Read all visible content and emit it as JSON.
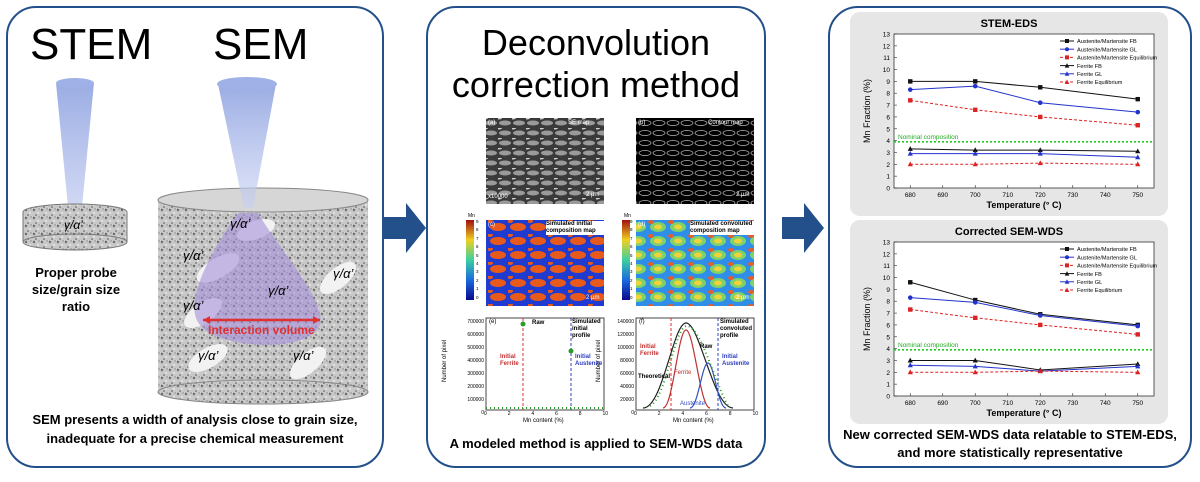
{
  "colors": {
    "frame": "#23508a",
    "arrow": "#23508a",
    "beam": "#8fa3e0",
    "interaction": "#a78fd8",
    "red_line": "#e03030"
  },
  "left": {
    "title_stem": "STEM",
    "title_sem": "SEM",
    "phase_label": "γ/α’",
    "probe_text": "Proper probe size/grain size ratio",
    "interaction_label": "Interaction volume",
    "caption": "SEM presents a width of analysis close to grain size, inadequate for a precise chemical measurement"
  },
  "middle": {
    "title": "Deconvolution correction method",
    "img_a_tag": "(a)",
    "img_a_label": "SE map",
    "img_a_scale": "2 µm",
    "img_a_mag": "x10000",
    "img_b_tag": "(b)",
    "img_b_label": "Contour map",
    "img_b_scale": "2 µm",
    "img_c_tag": "(c)",
    "img_c_label": "Simulated initial composition map",
    "img_c_scale": "2 µm",
    "img_d_tag": "(d)",
    "img_d_label": "Simulated convoluted composition map",
    "img_d_scale": "2 µm",
    "cbar_unit": "Mn",
    "cbar_ticks": [
      "9",
      "8",
      "7",
      "6",
      "5",
      "4",
      "3",
      "2",
      "1",
      "0"
    ],
    "hist_e": {
      "tag": "(e)",
      "ylabel": "Number of pixel",
      "xlabel": "Mn content (%)",
      "yticks": [
        "700000",
        "600000",
        "500000",
        "400000",
        "300000",
        "200000",
        "100000",
        "0"
      ],
      "xticks": [
        "0",
        "2",
        "4",
        "6",
        "8",
        "10"
      ],
      "raw": "Raw",
      "sim": "Simulated initial profile",
      "ferrite": "Initial Ferrite",
      "austenite": "Initial Austenite"
    },
    "hist_f": {
      "tag": "(f)",
      "ylabel": "Number of pixel",
      "xlabel": "Mn content (%)",
      "yticks": [
        "140000",
        "120000",
        "100000",
        "80000",
        "60000",
        "40000",
        "20000",
        "0"
      ],
      "xticks": [
        "0",
        "2",
        "4",
        "6",
        "8",
        "10"
      ],
      "raw": "Raw",
      "sim": "Simulated convoluted profile",
      "ferrite_init": "Initial Ferrite",
      "austenite_init": "Initial Austenite",
      "theoretical": "Theoretical",
      "ferrite": "Ferrite",
      "austenite": "Austenite"
    },
    "caption": "A modeled method is applied to SEM-WDS data"
  },
  "right": {
    "caption": "New corrected SEM-WDS data relatable to STEM-EDS, and more statistically representative",
    "nominal": "Nominal composition"
  },
  "chart_data": [
    {
      "type": "line",
      "title": "STEM-EDS",
      "xlabel": "Temperature (° C)",
      "ylabel": "Mn Fraction (%)",
      "xlim": [
        675,
        755
      ],
      "ylim": [
        0,
        13
      ],
      "xticks": [
        680,
        690,
        700,
        710,
        720,
        730,
        740,
        750
      ],
      "yticks": [
        0,
        1,
        2,
        3,
        4,
        5,
        6,
        7,
        8,
        9,
        10,
        11,
        12,
        13
      ],
      "nominal": 3.9,
      "legend": "top-right",
      "series": [
        {
          "name": "Austenite/Martensite FB",
          "color": "#111111",
          "dash": false,
          "marker": "square",
          "x": [
            680,
            700,
            720,
            750
          ],
          "y": [
            9.0,
            9.0,
            8.5,
            7.5
          ]
        },
        {
          "name": "Austenite/Martensite GL",
          "color": "#2233cc",
          "dash": false,
          "marker": "circle",
          "x": [
            680,
            700,
            720,
            750
          ],
          "y": [
            8.3,
            8.6,
            7.2,
            6.4
          ]
        },
        {
          "name": "Austenite/Martensite Equilibrium",
          "color": "#dd2222",
          "dash": true,
          "marker": "square",
          "x": [
            680,
            700,
            720,
            750
          ],
          "y": [
            7.4,
            6.6,
            6.0,
            5.3
          ]
        },
        {
          "name": "Ferrite FB",
          "color": "#111111",
          "dash": false,
          "marker": "triangle",
          "x": [
            680,
            700,
            720,
            750
          ],
          "y": [
            3.3,
            3.2,
            3.2,
            3.1
          ]
        },
        {
          "name": "Ferrite GL",
          "color": "#2233cc",
          "dash": false,
          "marker": "triangle",
          "x": [
            680,
            700,
            720,
            750
          ],
          "y": [
            2.9,
            2.9,
            2.9,
            2.6
          ]
        },
        {
          "name": "Ferrite Equilibrium",
          "color": "#dd2222",
          "dash": true,
          "marker": "triangle",
          "x": [
            680,
            700,
            720,
            750
          ],
          "y": [
            2.0,
            2.0,
            2.1,
            2.0
          ]
        }
      ]
    },
    {
      "type": "line",
      "title": "Corrected SEM-WDS",
      "xlabel": "Temperature (° C)",
      "ylabel": "Mn Fraction (%)",
      "xlim": [
        675,
        755
      ],
      "ylim": [
        0,
        13
      ],
      "xticks": [
        680,
        690,
        700,
        710,
        720,
        730,
        740,
        750
      ],
      "yticks": [
        0,
        1,
        2,
        3,
        4,
        5,
        6,
        7,
        8,
        9,
        10,
        11,
        12,
        13
      ],
      "nominal": 3.9,
      "legend": "top-right",
      "series": [
        {
          "name": "Austenite/Martensite FB",
          "color": "#111111",
          "dash": false,
          "marker": "square",
          "x": [
            680,
            700,
            720,
            750
          ],
          "y": [
            9.6,
            8.1,
            6.9,
            6.0
          ]
        },
        {
          "name": "Austenite/Martensite GL",
          "color": "#2233cc",
          "dash": false,
          "marker": "circle",
          "x": [
            680,
            700,
            720,
            750
          ],
          "y": [
            8.3,
            7.9,
            6.8,
            5.9
          ]
        },
        {
          "name": "Austenite/Martensite Equilibrium",
          "color": "#dd2222",
          "dash": true,
          "marker": "square",
          "x": [
            680,
            700,
            720,
            750
          ],
          "y": [
            7.3,
            6.6,
            6.0,
            5.2
          ]
        },
        {
          "name": "Ferrite FB",
          "color": "#111111",
          "dash": false,
          "marker": "triangle",
          "x": [
            680,
            700,
            720,
            750
          ],
          "y": [
            3.0,
            3.0,
            2.2,
            2.7
          ]
        },
        {
          "name": "Ferrite GL",
          "color": "#2233cc",
          "dash": false,
          "marker": "triangle",
          "x": [
            680,
            700,
            720,
            750
          ],
          "y": [
            2.6,
            2.5,
            2.1,
            2.5
          ]
        },
        {
          "name": "Ferrite Equilibrium",
          "color": "#dd2222",
          "dash": true,
          "marker": "triangle",
          "x": [
            680,
            700,
            720,
            750
          ],
          "y": [
            2.0,
            2.0,
            2.1,
            2.0
          ]
        }
      ]
    }
  ]
}
